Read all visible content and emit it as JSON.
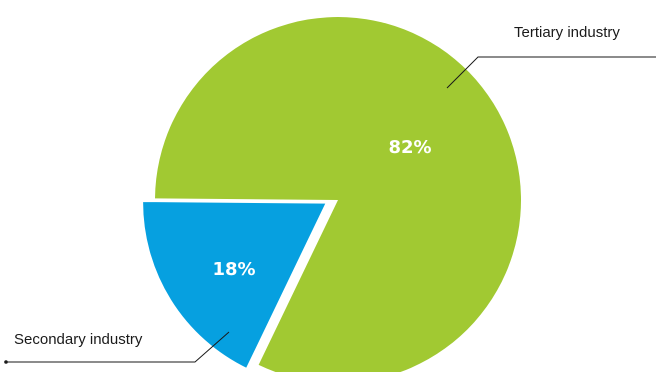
{
  "chart_data": {
    "type": "pie",
    "slices": [
      {
        "label": "Tertiary industry",
        "value": 82,
        "value_label": "82%",
        "color": "#a1c932"
      },
      {
        "label": "Secondary industry",
        "value": 18,
        "value_label": "18%",
        "color": "#06a0e0"
      }
    ],
    "title": "",
    "legend": "none",
    "notes": "labels are attached to slices with leader lines"
  }
}
